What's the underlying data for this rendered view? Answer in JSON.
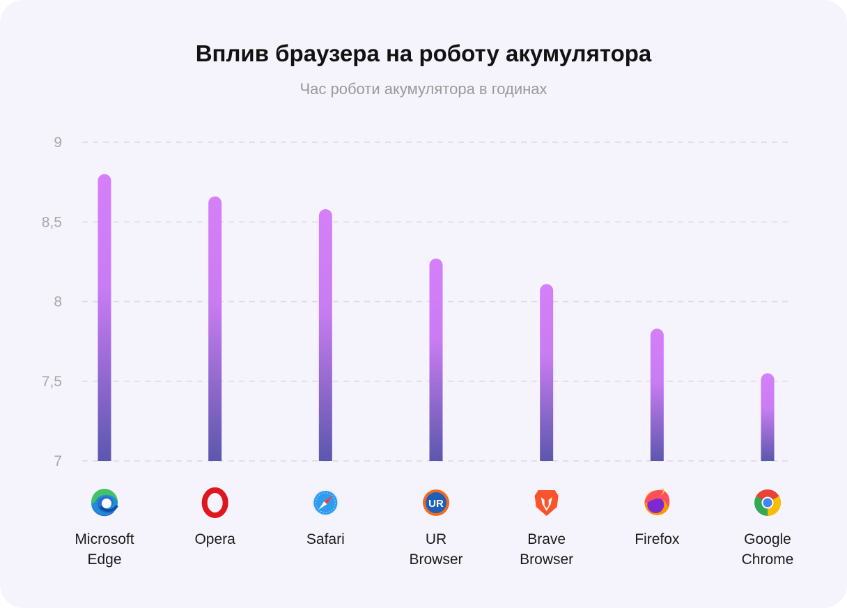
{
  "chart_data": {
    "type": "bar",
    "title": "Вплив браузера на роботу акумулятора",
    "subtitle": "Час роботи акумулятора в годинах",
    "ylim": [
      7,
      9
    ],
    "yticks": [
      "7",
      "7,5",
      "8",
      "8,5",
      "9"
    ],
    "grid": true,
    "categories": [
      {
        "lines": [
          "Microsoft",
          "Edge"
        ],
        "icon": "edge-icon"
      },
      {
        "lines": [
          "Opera"
        ],
        "icon": "opera-icon"
      },
      {
        "lines": [
          "Safari"
        ],
        "icon": "safari-icon"
      },
      {
        "lines": [
          "UR",
          "Browser"
        ],
        "icon": "ur-browser-icon"
      },
      {
        "lines": [
          "Brave",
          "Browser"
        ],
        "icon": "brave-icon"
      },
      {
        "lines": [
          "Firefox"
        ],
        "icon": "firefox-icon"
      },
      {
        "lines": [
          "Google",
          "Chrome"
        ],
        "icon": "chrome-icon"
      }
    ],
    "values": [
      8.8,
      8.66,
      8.58,
      8.27,
      8.11,
      7.83,
      7.55
    ],
    "colors": {
      "bar_top": "#d57ff8",
      "bar_bottom": "#5c57ad",
      "grid": "#dcd8e6"
    }
  }
}
